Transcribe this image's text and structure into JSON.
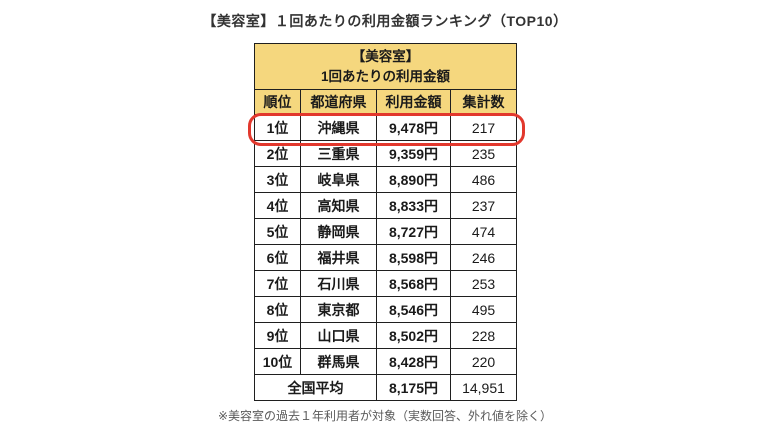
{
  "page_title": "【美容室】１回あたりの利用金額ランキング（TOP10）",
  "chart_data": {
    "type": "table",
    "title": "【美容室】１回あたりの利用金額ランキング（TOP10）",
    "title_cell": [
      "【美容室】",
      "1回あたりの利用金額"
    ],
    "columns": [
      "順位",
      "都道府県",
      "利用金額",
      "集計数"
    ],
    "rows": [
      {
        "rank": "1位",
        "prefecture": "沖縄県",
        "amount": "9,478円",
        "count": "217",
        "amount_yen": 9478,
        "count_n": 217,
        "highlighted": true
      },
      {
        "rank": "2位",
        "prefecture": "三重県",
        "amount": "9,359円",
        "count": "235",
        "amount_yen": 9359,
        "count_n": 235,
        "highlighted": false
      },
      {
        "rank": "3位",
        "prefecture": "岐阜県",
        "amount": "8,890円",
        "count": "486",
        "amount_yen": 8890,
        "count_n": 486,
        "highlighted": false
      },
      {
        "rank": "4位",
        "prefecture": "高知県",
        "amount": "8,833円",
        "count": "237",
        "amount_yen": 8833,
        "count_n": 237,
        "highlighted": false
      },
      {
        "rank": "5位",
        "prefecture": "静岡県",
        "amount": "8,727円",
        "count": "474",
        "amount_yen": 8727,
        "count_n": 474,
        "highlighted": false
      },
      {
        "rank": "6位",
        "prefecture": "福井県",
        "amount": "8,598円",
        "count": "246",
        "amount_yen": 8598,
        "count_n": 246,
        "highlighted": false
      },
      {
        "rank": "7位",
        "prefecture": "石川県",
        "amount": "8,568円",
        "count": "253",
        "amount_yen": 8568,
        "count_n": 253,
        "highlighted": false
      },
      {
        "rank": "8位",
        "prefecture": "東京都",
        "amount": "8,546円",
        "count": "495",
        "amount_yen": 8546,
        "count_n": 495,
        "highlighted": false
      },
      {
        "rank": "9位",
        "prefecture": "山口県",
        "amount": "8,502円",
        "count": "228",
        "amount_yen": 8502,
        "count_n": 228,
        "highlighted": false
      },
      {
        "rank": "10位",
        "prefecture": "群馬県",
        "amount": "8,428円",
        "count": "220",
        "amount_yen": 8428,
        "count_n": 220,
        "highlighted": false
      }
    ],
    "summary": {
      "label": "全国平均",
      "amount": "8,175円",
      "count": "14,951",
      "amount_yen": 8175,
      "count_n": 14951
    }
  },
  "footnote": "※美容室の過去１年利用者が対象（実数回答、外れ値を除く）",
  "colors": {
    "header_bg": "#F5D77E",
    "table_border": "#1f1f1f",
    "highlight_red": "#E2382D",
    "count_gray": "#8a8a8a",
    "footnote_gray": "#5a5a5a"
  }
}
